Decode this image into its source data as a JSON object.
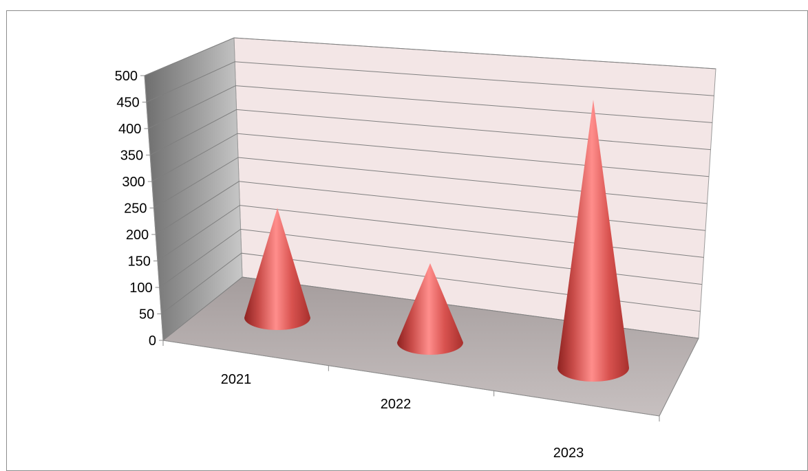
{
  "chart_data": {
    "type": "bar",
    "shape": "cone",
    "three_d": true,
    "categories": [
      "2021",
      "2022",
      "2023"
    ],
    "series": [
      {
        "values": [
          180,
          130,
          440
        ]
      }
    ],
    "y_ticks": [
      "0",
      "50",
      "100",
      "150",
      "200",
      "250",
      "300",
      "350",
      "400",
      "450",
      "500"
    ],
    "ylim": [
      0,
      500
    ],
    "grid": true,
    "legend": "none",
    "title": "",
    "xlabel": "",
    "ylabel": "",
    "colors": {
      "cone": "#c0504d",
      "cone_highlight": "#ff8a88",
      "back_wall": "#f3e6e6",
      "side_wall": "#a8a8a8",
      "floor": "#b8b0b0",
      "gridline": "#7f7f7f"
    }
  }
}
